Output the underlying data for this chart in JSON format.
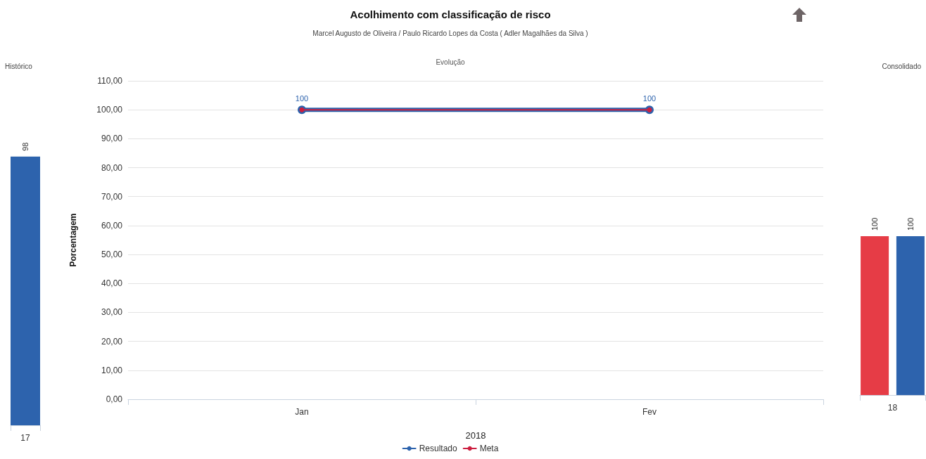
{
  "chart_data": [
    {
      "type": "bar",
      "title": "Histórico",
      "categories": [
        "17"
      ],
      "series": [
        {
          "color": "#2d63ad",
          "values": [
            98
          ]
        }
      ],
      "data_labels": true,
      "tick_labels": "x"
    },
    {
      "type": "line",
      "title": "Acolhimento com classificação de risco",
      "subtitle": "Marcel Augusto de Oliveira / Paulo Ricardo Lopes da Costa ( Adler Magalhães da Silva )",
      "annotations": [
        "Evolução"
      ],
      "xlabel": "2018",
      "ylabel": "Porcentagem",
      "categories": [
        "Jan",
        "Fev"
      ],
      "series": [
        {
          "name": "Resultado",
          "color": "#2d63ad",
          "values": [
            100,
            100
          ],
          "value_labels": [
            "100",
            "100"
          ]
        },
        {
          "name": "Meta",
          "color": "#cc1f40",
          "values": [
            100,
            100
          ]
        }
      ],
      "ylim": [
        0,
        110
      ],
      "yticks": [
        {
          "value": 0,
          "label": "0,00"
        },
        {
          "value": 10,
          "label": "10,00"
        },
        {
          "value": 20,
          "label": "20,00"
        },
        {
          "value": 30,
          "label": "30,00"
        },
        {
          "value": 40,
          "label": "40,00"
        },
        {
          "value": 50,
          "label": "50,00"
        },
        {
          "value": 60,
          "label": "60,00"
        },
        {
          "value": 70,
          "label": "70,00"
        },
        {
          "value": 80,
          "label": "80,00"
        },
        {
          "value": 90,
          "label": "90,00"
        },
        {
          "value": 100,
          "label": "100,00"
        },
        {
          "value": 110,
          "label": "110,00"
        }
      ],
      "grid": "y",
      "legend": "bottom",
      "marker": "circle"
    },
    {
      "type": "bar",
      "title": "Consolidado",
      "categories": [
        "18"
      ],
      "series": [
        {
          "color": "#e63c46",
          "values": [
            100
          ]
        },
        {
          "color": "#2d63ad",
          "values": [
            100
          ]
        }
      ],
      "data_labels": true,
      "tick_labels": "x"
    }
  ]
}
